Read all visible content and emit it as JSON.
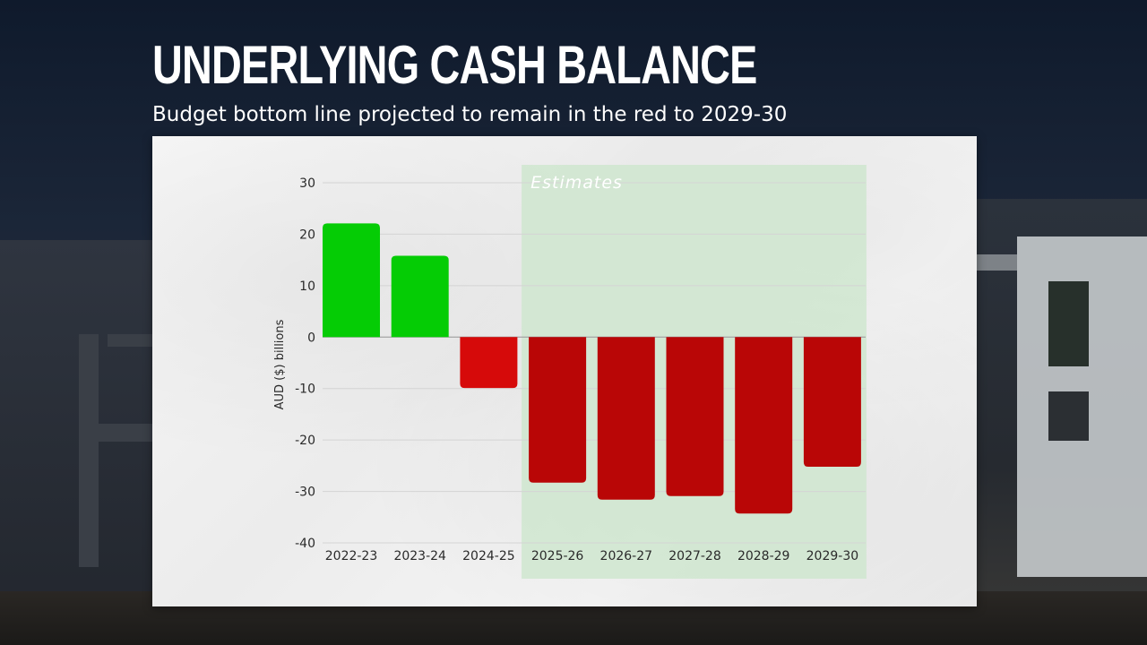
{
  "header": {
    "title": "UNDERLYING CASH BALANCE",
    "subtitle": "Budget bottom line projected to remain in the red to 2029-30"
  },
  "colors": {
    "positive": "#05cc05",
    "negative_actual": "#d60a0a",
    "negative_estimate": "#b90606",
    "estimates_band": "#cfe6cf",
    "text": "#2a2a2a"
  },
  "chart_data": {
    "type": "bar",
    "ylabel": "AUD ($) billions",
    "ylim": [
      -40,
      30
    ],
    "yticks": [
      30,
      20,
      10,
      0,
      -10,
      -20,
      -30,
      -40
    ],
    "grid": true,
    "categories": [
      "2022-23",
      "2023-24",
      "2024-25",
      "2025-26",
      "2026-27",
      "2027-28",
      "2028-29",
      "2029-30"
    ],
    "values": [
      22.1,
      15.8,
      -9.9,
      -28.3,
      -31.6,
      -30.9,
      -34.3,
      -25.2
    ],
    "annotations": [
      {
        "text": "Estimates",
        "from_category": "2025-26",
        "to_category": "2029-30"
      }
    ]
  }
}
